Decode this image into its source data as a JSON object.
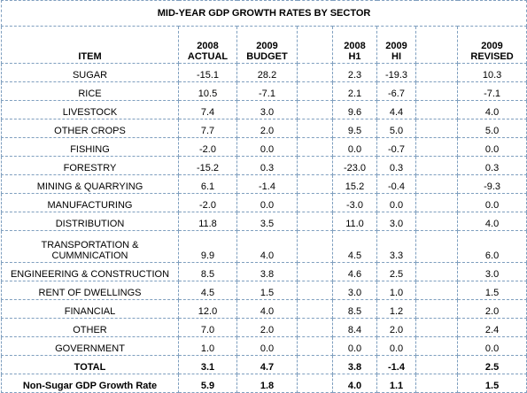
{
  "title": "MID-YEAR GDP GROWTH RATES BY SECTOR",
  "headers": {
    "item": "ITEM",
    "c2008_actual_year": "2008",
    "c2008_actual_label": "ACTUAL",
    "c2009_budget_year": "2009",
    "c2009_budget_label": "BUDGET",
    "c2008_h1_year": "2008",
    "c2008_h1_label": "H1",
    "c2009_hi_year": "2009",
    "c2009_hi_label": "HI",
    "c2009_revised_year": "2009",
    "c2009_revised_label": "REVISED"
  },
  "rows": [
    {
      "item": "SUGAR",
      "actual_2008": "-15.1",
      "budget_2009": "28.2",
      "h1_2008": "2.3",
      "hi_2009": "-19.3",
      "revised_2009": "10.3"
    },
    {
      "item": "RICE",
      "actual_2008": "10.5",
      "budget_2009": "-7.1",
      "h1_2008": "2.1",
      "hi_2009": "-6.7",
      "revised_2009": "-7.1"
    },
    {
      "item": "LIVESTOCK",
      "actual_2008": "7.4",
      "budget_2009": "3.0",
      "h1_2008": "9.6",
      "hi_2009": "4.4",
      "revised_2009": "4.0"
    },
    {
      "item": "OTHER CROPS",
      "actual_2008": "7.7",
      "budget_2009": "2.0",
      "h1_2008": "9.5",
      "hi_2009": "5.0",
      "revised_2009": "5.0"
    },
    {
      "item": "FISHING",
      "actual_2008": "-2.0",
      "budget_2009": "0.0",
      "h1_2008": "0.0",
      "hi_2009": "-0.7",
      "revised_2009": "0.0"
    },
    {
      "item": "FORESTRY",
      "actual_2008": "-15.2",
      "budget_2009": "0.3",
      "h1_2008": "-23.0",
      "hi_2009": "0.3",
      "revised_2009": "0.3"
    },
    {
      "item": "MINING & QUARRYING",
      "actual_2008": "6.1",
      "budget_2009": "-1.4",
      "h1_2008": "15.2",
      "hi_2009": "-0.4",
      "revised_2009": "-9.3"
    },
    {
      "item": "MANUFACTURING",
      "actual_2008": "-2.0",
      "budget_2009": "0.0",
      "h1_2008": "-3.0",
      "hi_2009": "0.0",
      "revised_2009": "0.0"
    },
    {
      "item": "DISTRIBUTION",
      "actual_2008": "11.8",
      "budget_2009": "3.5",
      "h1_2008": "11.0",
      "hi_2009": "3.0",
      "revised_2009": "4.0"
    },
    {
      "item": "TRANSPORTATION & CUMMNICATION",
      "actual_2008": "9.9",
      "budget_2009": "4.0",
      "h1_2008": "4.5",
      "hi_2009": "3.3",
      "revised_2009": "6.0"
    },
    {
      "item": "ENGINEERING & CONSTRUCTION",
      "actual_2008": "8.5",
      "budget_2009": "3.8",
      "h1_2008": "4.6",
      "hi_2009": "2.5",
      "revised_2009": "3.0"
    },
    {
      "item": "RENT OF DWELLINGS",
      "actual_2008": "4.5",
      "budget_2009": "1.5",
      "h1_2008": "3.0",
      "hi_2009": "1.0",
      "revised_2009": "1.5"
    },
    {
      "item": "FINANCIAL",
      "actual_2008": "12.0",
      "budget_2009": "4.0",
      "h1_2008": "8.5",
      "hi_2009": "1.2",
      "revised_2009": "2.0"
    },
    {
      "item": "OTHER",
      "actual_2008": "7.0",
      "budget_2009": "2.0",
      "h1_2008": "8.4",
      "hi_2009": "2.0",
      "revised_2009": "2.4"
    },
    {
      "item": "GOVERNMENT",
      "actual_2008": "1.0",
      "budget_2009": "0.0",
      "h1_2008": "0.0",
      "hi_2009": "0.0",
      "revised_2009": "0.0"
    }
  ],
  "total": {
    "item": "TOTAL",
    "actual_2008": "3.1",
    "budget_2009": "4.7",
    "h1_2008": "3.8",
    "hi_2009": "-1.4",
    "revised_2009": "2.5"
  },
  "non_sugar": {
    "item": "Non-Sugar GDP Growth Rate",
    "actual_2008": "5.9",
    "budget_2009": "1.8",
    "h1_2008": "4.0",
    "hi_2009": "1.1",
    "revised_2009": "1.5"
  }
}
